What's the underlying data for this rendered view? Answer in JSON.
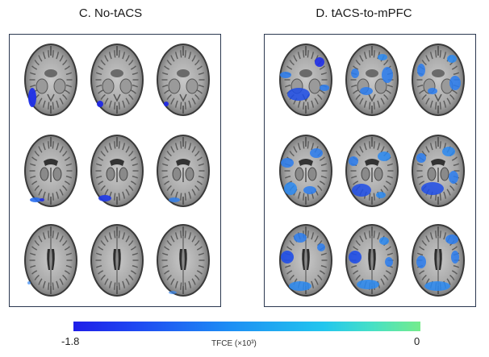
{
  "panels": {
    "left": {
      "title": "C. No-tACS"
    },
    "right": {
      "title": "D. tACS-to-mPFC"
    }
  },
  "colorbar": {
    "min_label": "-1.8",
    "max_label": "0",
    "label": "TFCE (×10³)",
    "colors": [
      "#1f1ee8",
      "#1d8ef4",
      "#74ec8c"
    ]
  },
  "brain_colors": {
    "background": "#ffffff",
    "tissue_dark": "#3a3a3a",
    "tissue_mid": "#8c8c8c",
    "tissue_light": "#bdbdbd"
  }
}
